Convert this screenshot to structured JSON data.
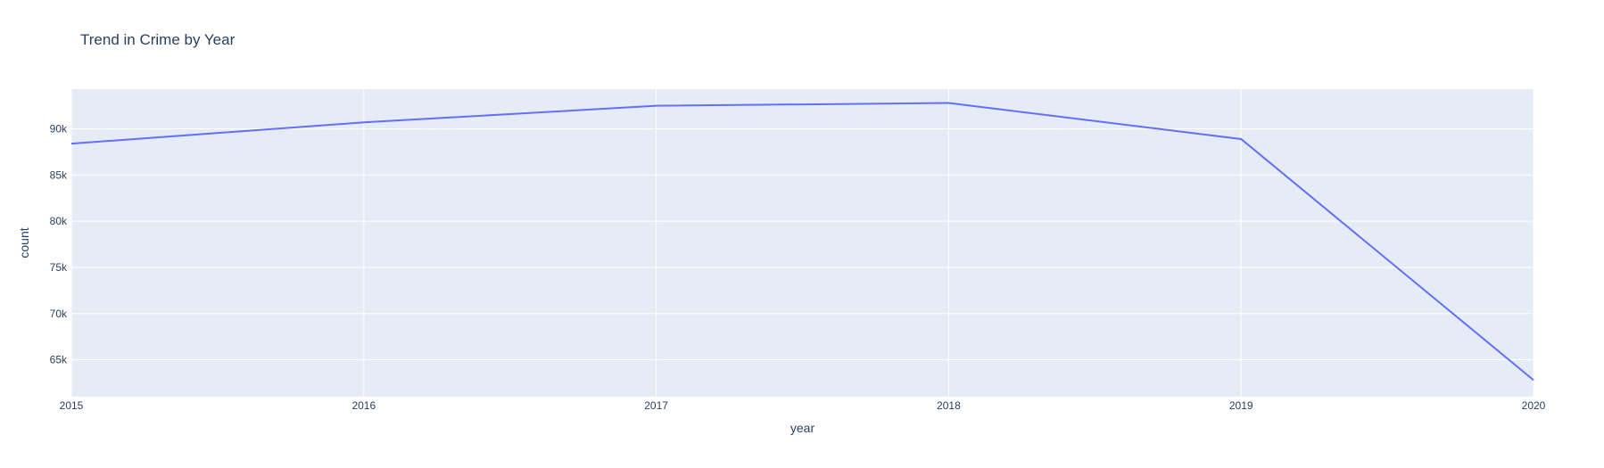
{
  "colors": {
    "plot_background": "#e5ecf6",
    "gridline": "#ffffff",
    "series_line": "#636efa",
    "text": "#2a3f5f"
  },
  "chart_data": {
    "type": "line",
    "title": "Trend in Crime by Year",
    "xlabel": "year",
    "ylabel": "count",
    "x": [
      2015,
      2016,
      2017,
      2018,
      2019,
      2020
    ],
    "series": [
      {
        "values": [
          88400,
          90700,
          92500,
          92800,
          88900,
          62800
        ]
      }
    ],
    "xlim": [
      2015,
      2020
    ],
    "ylim": [
      61000,
      94300
    ],
    "xticks": [
      2015,
      2016,
      2017,
      2018,
      2019,
      2020
    ],
    "xtick_labels": [
      "2015",
      "2016",
      "2017",
      "2018",
      "2019",
      "2020"
    ],
    "yticks": [
      65000,
      70000,
      75000,
      80000,
      85000,
      90000
    ],
    "ytick_labels": [
      "65k",
      "70k",
      "75k",
      "80k",
      "85k",
      "90k"
    ],
    "grid": true,
    "legend": "none"
  }
}
